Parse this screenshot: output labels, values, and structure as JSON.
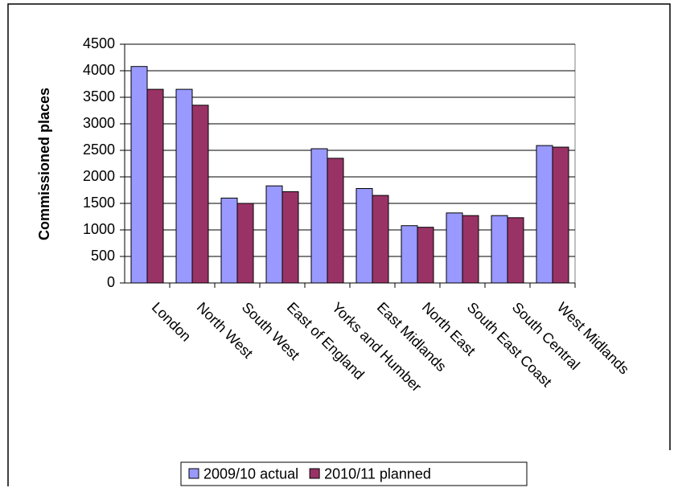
{
  "chart_data": {
    "type": "bar",
    "y_label": "Commissioned places",
    "categories": [
      "London",
      "North West",
      "South West",
      "East of England",
      "Yorks and Humber",
      "East Midlands",
      "North East",
      "South East Coast",
      "South Central",
      "West Midlands"
    ],
    "series": [
      {
        "name": "2009/10 actual",
        "color": "#9999ff",
        "values": [
          4080,
          3650,
          1600,
          1830,
          2530,
          1780,
          1080,
          1320,
          1270,
          2590
        ]
      },
      {
        "name": "2010/11 planned",
        "color": "#993366",
        "values": [
          3650,
          3350,
          1500,
          1720,
          2350,
          1650,
          1050,
          1270,
          1230,
          2560
        ]
      }
    ],
    "ylim": [
      0,
      4500
    ],
    "yticks": [
      0,
      500,
      1000,
      1500,
      2000,
      2500,
      3000,
      3500,
      4000,
      4500
    ],
    "grid": true,
    "legend": "bottom"
  }
}
